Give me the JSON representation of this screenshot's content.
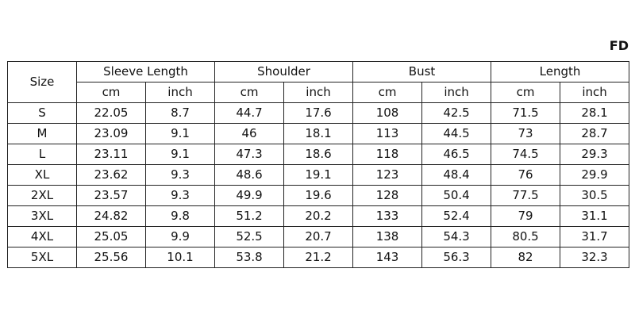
{
  "header": {
    "code": "FD"
  },
  "table": {
    "size_header": "Size",
    "groups": [
      {
        "name": "Sleeve Length",
        "units": [
          "cm",
          "inch"
        ]
      },
      {
        "name": "Shoulder",
        "units": [
          "cm",
          "inch"
        ]
      },
      {
        "name": "Bust",
        "units": [
          "cm",
          "inch"
        ]
      },
      {
        "name": "Length",
        "units": [
          "cm",
          "inch"
        ]
      }
    ],
    "rows": [
      [
        "S",
        22.05,
        8.7,
        44.7,
        17.6,
        108,
        42.5,
        71.5,
        28.1
      ],
      [
        "M",
        23.09,
        9.1,
        46,
        18.1,
        113,
        44.5,
        73,
        28.7
      ],
      [
        "L",
        23.11,
        9.1,
        47.3,
        18.6,
        118,
        46.5,
        74.5,
        29.3
      ],
      [
        "XL",
        23.62,
        9.3,
        48.6,
        19.1,
        123,
        48.4,
        76,
        29.9
      ],
      [
        "2XL",
        23.57,
        9.3,
        49.9,
        19.6,
        128,
        50.4,
        77.5,
        30.5
      ],
      [
        "3XL",
        24.82,
        9.8,
        51.2,
        20.2,
        133,
        52.4,
        79,
        31.1
      ],
      [
        "4XL",
        25.05,
        9.9,
        52.5,
        20.7,
        138,
        54.3,
        80.5,
        31.7
      ],
      [
        "5XL",
        25.56,
        10.1,
        53.8,
        21.2,
        143,
        56.3,
        82,
        32.3
      ]
    ]
  }
}
